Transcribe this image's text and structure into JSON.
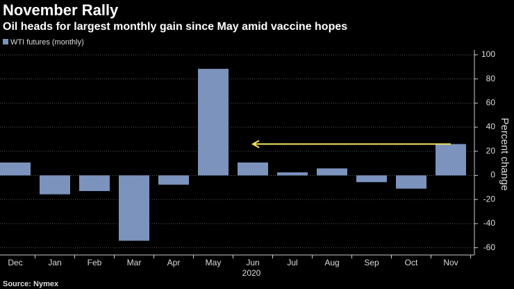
{
  "chart_data": {
    "type": "bar",
    "title": "November Rally",
    "subtitle": "Oil heads for largest monthly gain since May amid vaccine hopes",
    "categories": [
      "Dec",
      "Jan",
      "Feb",
      "Mar",
      "Apr",
      "May",
      "Jun",
      "Jul",
      "Aug",
      "Sep",
      "Oct",
      "Nov"
    ],
    "x_group_label": "2020",
    "series": [
      {
        "name": "WTI futures (monthly)",
        "color": "#7b93bd",
        "values": [
          10.7,
          -15.7,
          -13,
          -54.2,
          -7.7,
          88.4,
          10.7,
          2.5,
          5.8,
          -5.6,
          -11,
          26
        ]
      }
    ],
    "ylim": [
      -66,
      104
    ],
    "yticks": [
      -60,
      -40,
      -20,
      0,
      20,
      40,
      60,
      80,
      100
    ],
    "ylabel": "Percent change",
    "grid": true,
    "source": "Source: Nymex"
  }
}
